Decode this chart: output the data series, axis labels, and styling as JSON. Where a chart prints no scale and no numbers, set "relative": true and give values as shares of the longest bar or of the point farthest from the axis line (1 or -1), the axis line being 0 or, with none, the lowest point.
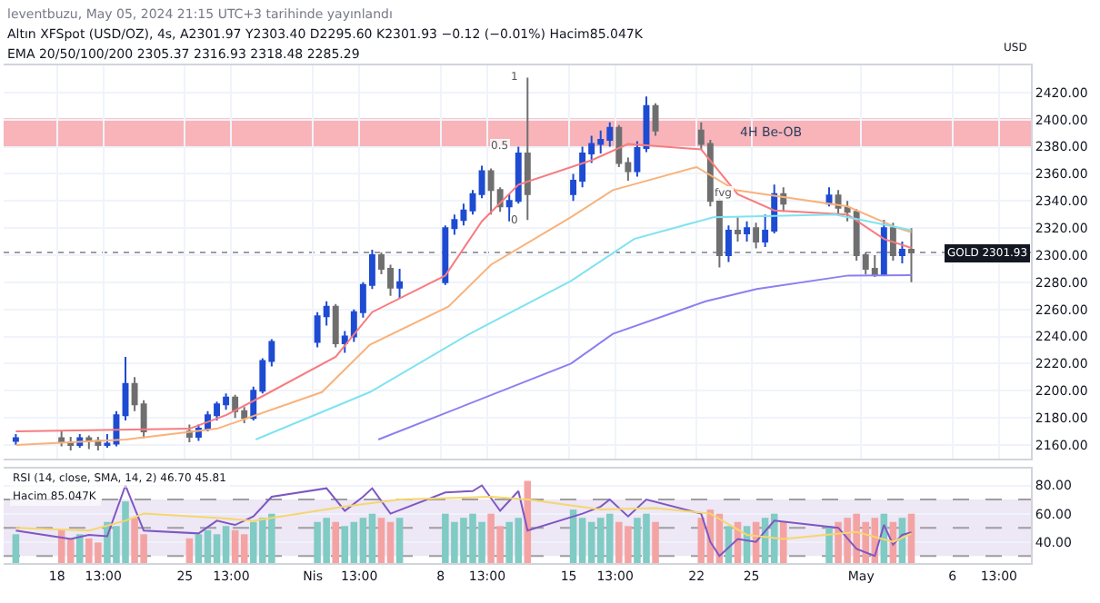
{
  "chart_data": [
    {
      "type": "candlestick",
      "title": "Altın XFSpot (USD/OZ), 4s, A2301.97 Y2303.40 D2295.60 K2301.93 −0.12 (−0.01%) Hacim85.047K",
      "subtitle": "EMA 20/50/100/200 2305.37 2316.93 2318.48 2285.29",
      "x": [
        "2024-03-15T18:00",
        "2024-03-18T06:00",
        "2024-03-18T18:00",
        "2024-03-19T06:00",
        "2024-03-19T18:00",
        "2024-03-20T06:00",
        "2024-03-20T18:00",
        "2024-03-21T06:00",
        "2024-03-21T18:00",
        "2024-03-22T06:00",
        "2024-03-22T18:00",
        "2024-03-25T06:00",
        "2024-03-25T18:00",
        "2024-03-26T06:00",
        "2024-03-26T18:00",
        "2024-03-27T06:00",
        "2024-03-27T18:00",
        "2024-03-28T06:00",
        "2024-03-28T18:00",
        "2024-03-29T06:00",
        "2024-03-29T18:00",
        "2024-04-01T06:00",
        "2024-04-01T18:00",
        "2024-04-02T06:00",
        "2024-04-02T18:00",
        "2024-04-03T06:00",
        "2024-04-03T18:00",
        "2024-04-04T06:00",
        "2024-04-04T18:00",
        "2024-04-05T06:00",
        "2024-04-05T18:00",
        "2024-04-08T06:00",
        "2024-04-08T18:00",
        "2024-04-09T06:00",
        "2024-04-09T18:00",
        "2024-04-10T06:00",
        "2024-04-10T18:00",
        "2024-04-11T06:00",
        "2024-04-11T18:00",
        "2024-04-12T06:00",
        "2024-04-12T18:00",
        "2024-04-15T06:00",
        "2024-04-15T18:00",
        "2024-04-16T06:00",
        "2024-04-16T18:00",
        "2024-04-17T06:00",
        "2024-04-17T18:00",
        "2024-04-18T06:00",
        "2024-04-18T18:00",
        "2024-04-19T06:00",
        "2024-04-19T18:00",
        "2024-04-22T06:00",
        "2024-04-22T18:00",
        "2024-04-23T06:00",
        "2024-04-23T18:00",
        "2024-04-24T06:00",
        "2024-04-24T18:00",
        "2024-04-25T06:00",
        "2024-04-25T18:00",
        "2024-04-26T06:00",
        "2024-04-26T18:00",
        "2024-04-29T06:00",
        "2024-04-29T18:00",
        "2024-04-30T06:00",
        "2024-04-30T18:00",
        "2024-05-01T06:00",
        "2024-05-01T18:00",
        "2024-05-02T06:00",
        "2024-05-02T18:00",
        "2024-05-03T06:00",
        "2024-05-03T18:00"
      ],
      "ohlc": [
        [
          2163,
          2168,
          2160,
          2165
        ],
        [
          2165,
          2170,
          2159,
          2162
        ],
        [
          2162,
          2166,
          2156,
          2160
        ],
        [
          2160,
          2168,
          2158,
          2165
        ],
        [
          2165,
          2167,
          2157,
          2163
        ],
        [
          2163,
          2166,
          2156,
          2160
        ],
        [
          2160,
          2168,
          2158,
          2161
        ],
        [
          2161,
          2185,
          2159,
          2182
        ],
        [
          2182,
          2225,
          2178,
          2205
        ],
        [
          2205,
          2210,
          2185,
          2190
        ],
        [
          2190,
          2193,
          2165,
          2170
        ],
        [
          2170,
          2175,
          2162,
          2166
        ],
        [
          2166,
          2175,
          2163,
          2172
        ],
        [
          2172,
          2185,
          2170,
          2182
        ],
        [
          2182,
          2192,
          2178,
          2190
        ],
        [
          2190,
          2198,
          2186,
          2195
        ],
        [
          2195,
          2197,
          2180,
          2185
        ],
        [
          2185,
          2188,
          2176,
          2180
        ],
        [
          2180,
          2203,
          2178,
          2200
        ],
        [
          2200,
          2224,
          2198,
          2222
        ],
        [
          2222,
          2238,
          2218,
          2236
        ],
        [
          2236,
          2258,
          2232,
          2255
        ],
        [
          2255,
          2266,
          2248,
          2262
        ],
        [
          2262,
          2264,
          2232,
          2235
        ],
        [
          2235,
          2244,
          2228,
          2240
        ],
        [
          2240,
          2260,
          2236,
          2258
        ],
        [
          2258,
          2280,
          2254,
          2278
        ],
        [
          2278,
          2304,
          2275,
          2300
        ],
        [
          2300,
          2302,
          2286,
          2290
        ],
        [
          2290,
          2293,
          2270,
          2276
        ],
        [
          2276,
          2290,
          2268,
          2280
        ],
        [
          2280,
          2322,
          2278,
          2320
        ],
        [
          2320,
          2330,
          2315,
          2326
        ],
        [
          2326,
          2338,
          2322,
          2333
        ],
        [
          2333,
          2348,
          2330,
          2345
        ],
        [
          2345,
          2366,
          2342,
          2362
        ],
        [
          2362,
          2364,
          2330,
          2348
        ],
        [
          2348,
          2350,
          2332,
          2336
        ],
        [
          2336,
          2345,
          2325,
          2340
        ],
        [
          2340,
          2380,
          2338,
          2375
        ],
        [
          2375,
          2431,
          2326,
          2345
        ],
        [
          2345,
          2360,
          2340,
          2355
        ],
        [
          2355,
          2380,
          2350,
          2375
        ],
        [
          2375,
          2388,
          2368,
          2382
        ],
        [
          2382,
          2392,
          2375,
          2385
        ],
        [
          2385,
          2398,
          2380,
          2394
        ],
        [
          2394,
          2396,
          2365,
          2368
        ],
        [
          2368,
          2372,
          2355,
          2362
        ],
        [
          2362,
          2384,
          2358,
          2379
        ],
        [
          2379,
          2417,
          2376,
          2410
        ],
        [
          2410,
          2412,
          2388,
          2392
        ],
        [
          2392,
          2398,
          2378,
          2382
        ],
        [
          2382,
          2385,
          2336,
          2340
        ],
        [
          2340,
          2342,
          2291,
          2300
        ],
        [
          2300,
          2322,
          2295,
          2318
        ],
        [
          2318,
          2328,
          2310,
          2316
        ],
        [
          2316,
          2325,
          2310,
          2320
        ],
        [
          2320,
          2324,
          2305,
          2310
        ],
        [
          2310,
          2330,
          2306,
          2318
        ],
        [
          2318,
          2352,
          2316,
          2345
        ],
        [
          2345,
          2350,
          2332,
          2338
        ],
        [
          2338,
          2350,
          2336,
          2344
        ],
        [
          2344,
          2348,
          2330,
          2335
        ],
        [
          2335,
          2340,
          2325,
          2332
        ],
        [
          2332,
          2334,
          2296,
          2300
        ],
        [
          2300,
          2302,
          2286,
          2290
        ],
        [
          2290,
          2300,
          2284,
          2286
        ],
        [
          2286,
          2326,
          2285,
          2320
        ],
        [
          2320,
          2324,
          2296,
          2300
        ],
        [
          2300,
          2310,
          2294,
          2304
        ],
        [
          2304,
          2320,
          2280,
          2301.93
        ]
      ],
      "colors": [
        "#1e4bd2",
        "#6f6f6f",
        "#6f6f6f",
        "#1e4bd2",
        "#6f6f6f",
        "#6f6f6f",
        "#1e4bd2",
        "#1e4bd2",
        "#1e4bd2",
        "#6f6f6f",
        "#6f6f6f",
        "#6f6f6f",
        "#1e4bd2",
        "#1e4bd2",
        "#1e4bd2",
        "#1e4bd2",
        "#6f6f6f",
        "#6f6f6f",
        "#1e4bd2",
        "#1e4bd2",
        "#1e4bd2",
        "#1e4bd2",
        "#1e4bd2",
        "#6f6f6f",
        "#1e4bd2",
        "#1e4bd2",
        "#1e4bd2",
        "#1e4bd2",
        "#6f6f6f",
        "#6f6f6f",
        "#1e4bd2",
        "#1e4bd2",
        "#1e4bd2",
        "#1e4bd2",
        "#1e4bd2",
        "#1e4bd2",
        "#6f6f6f",
        "#6f6f6f",
        "#1e4bd2",
        "#1e4bd2",
        "#6f6f6f",
        "#1e4bd2",
        "#1e4bd2",
        "#1e4bd2",
        "#1e4bd2",
        "#1e4bd2",
        "#6f6f6f",
        "#6f6f6f",
        "#1e4bd2",
        "#1e4bd2",
        "#6f6f6f",
        "#6f6f6f",
        "#6f6f6f",
        "#6f6f6f",
        "#1e4bd2",
        "#6f6f6f",
        "#1e4bd2",
        "#6f6f6f",
        "#1e4bd2",
        "#1e4bd2",
        "#6f6f6f",
        "#1e4bd2",
        "#6f6f6f",
        "#6f6f6f",
        "#6f6f6f",
        "#6f6f6f",
        "#6f6f6f",
        "#1e4bd2",
        "#6f6f6f",
        "#1e4bd2",
        "#6f6f6f"
      ],
      "series": [
        {
          "type": "line",
          "color": "#f77c80",
          "x": [
            "2024-03-15T18:00",
            "2024-03-25T06:00",
            "2024-03-27T06:00",
            "2024-03-29T06:00",
            "2024-04-02T06:00",
            "2024-04-04T06:00",
            "2024-04-08T06:00",
            "2024-04-10T06:00",
            "2024-04-12T06:00",
            "2024-04-16T06:00",
            "2024-04-18T06:00",
            "2024-04-22T06:00",
            "2024-04-24T06:00",
            "2024-04-26T06:00",
            "2024-04-30T06:00",
            "2024-05-02T06:00",
            "2024-05-03T18:00"
          ],
          "values": [
            2170,
            2172,
            2182,
            2196,
            2225,
            2258,
            2285,
            2325,
            2352,
            2370,
            2382,
            2378,
            2345,
            2333,
            2330,
            2312,
            2305.37
          ]
        },
        {
          "type": "line",
          "color": "#f9b27a",
          "x": [
            "2024-03-15T18:00",
            "2024-03-21T18:00",
            "2024-03-26T18:00",
            "2024-04-01T12:00",
            "2024-04-04T03:00",
            "2024-04-08T10:00",
            "2024-04-10T18:00",
            "2024-04-15T03:00",
            "2024-04-17T10:00",
            "2024-04-22T00:00",
            "2024-04-24T03:00",
            "2024-04-30T06:00",
            "2024-05-03T00:00",
            "2024-05-03T18:00"
          ],
          "values": [
            2160,
            2164,
            2172,
            2199,
            2234,
            2262,
            2293,
            2328,
            2348,
            2365,
            2348,
            2336,
            2320,
            2316.93
          ]
        },
        {
          "type": "line",
          "color": "#7fe3f0",
          "x": [
            "2024-03-28T21:00",
            "2024-04-04T03:00",
            "2024-04-09T14:00",
            "2024-04-15T03:00",
            "2024-04-18T14:00",
            "2024-04-22T22:00",
            "2024-04-29T14:00",
            "2024-05-03T18:00"
          ],
          "values": [
            2164,
            2199,
            2242,
            2281,
            2312,
            2328,
            2330,
            2318.48
          ]
        },
        {
          "type": "line",
          "color": "#8c7ff0",
          "x": [
            "2024-04-04T14:00",
            "2024-04-15T03:00",
            "2024-04-17T10:00",
            "2024-04-22T12:00",
            "2024-04-25T07:00",
            "2024-04-30T07:00",
            "2024-05-03T18:00"
          ],
          "values": [
            2164,
            2220,
            2242,
            2266,
            2275,
            2285,
            2285.29
          ]
        }
      ],
      "xlim": [
        "2024-03-15T02:00",
        "2024-05-10T07:00"
      ],
      "xticks": [
        {
          "value": "2024-03-18",
          "label": null
        },
        {
          "value": "2024-03-20T13:00",
          "label": null
        },
        {
          "value": "2024-03-25",
          "label": null
        },
        {
          "value": "2024-03-27T13:00",
          "label": null
        },
        {
          "value": "2024-04-01",
          "label": null
        },
        {
          "value": "2024-04-03T13:00",
          "label": null
        },
        {
          "value": "2024-04-08",
          "label": null
        },
        {
          "value": "2024-04-10T13:00",
          "label": null
        },
        {
          "value": "2024-04-15",
          "label": null
        },
        {
          "value": "2024-04-17T13:00",
          "label": null
        },
        {
          "value": "2024-04-22",
          "label": null
        },
        {
          "value": "2024-04-25",
          "label": null
        },
        {
          "value": "2024-05-01",
          "label": null
        },
        {
          "value": "2024-05-06",
          "label": null
        },
        {
          "value": "2024-05-08T13:00",
          "label": null
        }
      ],
      "ylim": [
        2150,
        2440
      ],
      "yticks": [
        {
          "value": 2160,
          "label": "2160.00"
        },
        {
          "value": 2180,
          "label": "2180.00"
        },
        {
          "value": 2200,
          "label": "2200.00"
        },
        {
          "value": 2220,
          "label": "2220.00"
        },
        {
          "value": 2240,
          "label": "2240.00"
        },
        {
          "value": 2260,
          "label": "2260.00"
        },
        {
          "value": 2280,
          "label": "2280.00"
        },
        {
          "value": 2300,
          "label": "2300.00"
        },
        {
          "value": 2320,
          "label": "2320.00"
        },
        {
          "value": 2340,
          "label": "2340.00"
        },
        {
          "value": 2360,
          "label": "2360.00"
        },
        {
          "value": 2380,
          "label": "2380.00"
        },
        {
          "value": 2400,
          "label": "2400.00"
        },
        {
          "value": 2420,
          "label": "2420.00"
        }
      ],
      "ylabel": "USD",
      "tick_labels": "y",
      "grid": true,
      "ref_lines": [
        {
          "axis": "y",
          "value": 2301.93,
          "label": "GOLD 2301.93",
          "color": "#9e9e9e",
          "line_style": "dotted"
        }
      ],
      "bands": [
        {
          "axis": "y",
          "from": 2380,
          "to": 2401,
          "label": "4H Be-OB",
          "color": "#f8b4b9"
        }
      ],
      "annotations": [
        "leventbuzu, May 05, 2024 21:15 UTC+3 tarihinde yayınlandı",
        {
          "text": "1",
          "x": "2024-04-12T18:00",
          "y": 2431
        },
        {
          "text": "0.5",
          "x": "2024-04-12T06:00",
          "y": 2380
        },
        {
          "text": "0",
          "x": "2024-04-12T18:00",
          "y": 2326
        },
        {
          "text": "fvg",
          "x": "2024-04-24T12:00",
          "y": 2346
        }
      ]
    },
    {
      "type": "bar",
      "relative": true,
      "title": "Hacim 85.047K",
      "tick_labels": false,
      "x": [
        "2024-03-15T18:00",
        "2024-03-18T06:00",
        "2024-03-18T18:00",
        "2024-03-19T06:00",
        "2024-03-19T18:00",
        "2024-03-20T06:00",
        "2024-03-20T18:00",
        "2024-03-21T06:00",
        "2024-03-21T18:00",
        "2024-03-22T06:00",
        "2024-03-22T18:00",
        "2024-03-25T06:00",
        "2024-03-25T18:00",
        "2024-03-26T06:00",
        "2024-03-26T18:00",
        "2024-03-27T06:00",
        "2024-03-27T18:00",
        "2024-03-28T06:00",
        "2024-03-28T18:00",
        "2024-03-29T06:00",
        "2024-03-29T18:00",
        "2024-04-01T06:00",
        "2024-04-01T18:00",
        "2024-04-02T06:00",
        "2024-04-02T18:00",
        "2024-04-03T06:00",
        "2024-04-03T18:00",
        "2024-04-04T06:00",
        "2024-04-04T18:00",
        "2024-04-05T06:00",
        "2024-04-05T18:00",
        "2024-04-08T06:00",
        "2024-04-08T18:00",
        "2024-04-09T06:00",
        "2024-04-09T18:00",
        "2024-04-10T06:00",
        "2024-04-10T18:00",
        "2024-04-11T06:00",
        "2024-04-11T18:00",
        "2024-04-12T06:00",
        "2024-04-12T18:00",
        "2024-04-15T06:00",
        "2024-04-15T18:00",
        "2024-04-16T06:00",
        "2024-04-16T18:00",
        "2024-04-17T06:00",
        "2024-04-17T18:00",
        "2024-04-18T06:00",
        "2024-04-18T18:00",
        "2024-04-19T06:00",
        "2024-04-19T18:00",
        "2024-04-22T06:00",
        "2024-04-22T18:00",
        "2024-04-23T06:00",
        "2024-04-23T18:00",
        "2024-04-24T06:00",
        "2024-04-24T18:00",
        "2024-04-25T06:00",
        "2024-04-25T18:00",
        "2024-04-26T06:00",
        "2024-04-26T18:00",
        "2024-04-29T06:00",
        "2024-04-29T18:00",
        "2024-04-30T06:00",
        "2024-04-30T18:00",
        "2024-05-01T06:00",
        "2024-05-01T18:00",
        "2024-05-02T06:00",
        "2024-05-02T18:00",
        "2024-05-03T06:00",
        "2024-05-03T18:00"
      ],
      "values": [
        0.35,
        0.4,
        0.3,
        0.35,
        0.3,
        0.25,
        0.5,
        0.45,
        0.75,
        0.55,
        0.35,
        0.3,
        0.35,
        0.4,
        0.35,
        0.45,
        0.4,
        0.35,
        0.5,
        0.55,
        0.6,
        0.5,
        0.55,
        0.5,
        0.45,
        0.5,
        0.55,
        0.6,
        0.55,
        0.5,
        0.55,
        0.6,
        0.5,
        0.55,
        0.6,
        0.5,
        0.6,
        0.45,
        0.5,
        0.55,
        1.0,
        0.65,
        0.55,
        0.5,
        0.55,
        0.6,
        0.5,
        0.45,
        0.55,
        0.6,
        0.5,
        0.55,
        0.65,
        0.6,
        0.45,
        0.5,
        0.45,
        0.5,
        0.55,
        0.6,
        0.5,
        0.45,
        0.5,
        0.55,
        0.6,
        0.5,
        0.55,
        0.6,
        0.5,
        0.55,
        0.6
      ],
      "colors": [
        "#80cbc4",
        "#f4a3a3",
        "#f4a3a3",
        "#80cbc4",
        "#f4a3a3",
        "#f4a3a3",
        "#80cbc4",
        "#80cbc4",
        "#80cbc4",
        "#f4a3a3",
        "#f4a3a3",
        "#f4a3a3",
        "#80cbc4",
        "#80cbc4",
        "#80cbc4",
        "#80cbc4",
        "#f4a3a3",
        "#f4a3a3",
        "#80cbc4",
        "#80cbc4",
        "#80cbc4",
        "#80cbc4",
        "#80cbc4",
        "#f4a3a3",
        "#80cbc4",
        "#80cbc4",
        "#80cbc4",
        "#80cbc4",
        "#f4a3a3",
        "#f4a3a3",
        "#80cbc4",
        "#80cbc4",
        "#80cbc4",
        "#80cbc4",
        "#80cbc4",
        "#80cbc4",
        "#f4a3a3",
        "#f4a3a3",
        "#80cbc4",
        "#80cbc4",
        "#f4a3a3",
        "#80cbc4",
        "#80cbc4",
        "#80cbc4",
        "#80cbc4",
        "#80cbc4",
        "#f4a3a3",
        "#f4a3a3",
        "#80cbc4",
        "#80cbc4",
        "#f4a3a3",
        "#f4a3a3",
        "#f4a3a3",
        "#f4a3a3",
        "#80cbc4",
        "#f4a3a3",
        "#80cbc4",
        "#f4a3a3",
        "#80cbc4",
        "#80cbc4",
        "#f4a3a3",
        "#80cbc4",
        "#f4a3a3",
        "#f4a3a3",
        "#f4a3a3",
        "#f4a3a3",
        "#f4a3a3",
        "#80cbc4",
        "#f4a3a3",
        "#80cbc4",
        "#f4a3a3"
      ],
      "xlim": [
        "2024-03-15T02:00",
        "2024-05-10T07:00"
      ]
    },
    {
      "type": "line",
      "title": "RSI (14, close, SMA, 14, 2) 46.70 45.81",
      "grid": true,
      "series": [
        {
          "color": "#7e57c2",
          "x": [
            "2024-03-15T18:00",
            "2024-03-18T18:00",
            "2024-03-19T18:00",
            "2024-03-20T18:00",
            "2024-03-21T18:00",
            "2024-03-22T18:00",
            "2024-03-25T18:00",
            "2024-03-26T18:00",
            "2024-03-27T18:00",
            "2024-03-28T18:00",
            "2024-03-29T18:00",
            "2024-04-01T18:00",
            "2024-04-02T18:00",
            "2024-04-03T18:00",
            "2024-04-04T06:00",
            "2024-04-05T06:00",
            "2024-04-08T06:00",
            "2024-04-09T18:00",
            "2024-04-10T06:00",
            "2024-04-11T06:00",
            "2024-04-12T06:00",
            "2024-04-12T18:00",
            "2024-04-15T18:00",
            "2024-04-16T18:00",
            "2024-04-17T06:00",
            "2024-04-18T06:00",
            "2024-04-19T06:00",
            "2024-04-22T06:00",
            "2024-04-22T18:00",
            "2024-04-23T06:00",
            "2024-04-24T06:00",
            "2024-04-25T06:00",
            "2024-04-26T06:00",
            "2024-04-29T18:00",
            "2024-04-30T18:00",
            "2024-05-01T18:00",
            "2024-05-02T06:00",
            "2024-05-02T18:00",
            "2024-05-03T06:00",
            "2024-05-03T18:00"
          ],
          "values": [
            48,
            42,
            45,
            44,
            80,
            48,
            46,
            55,
            52,
            58,
            72,
            78,
            62,
            72,
            78,
            60,
            75,
            76,
            80,
            62,
            76,
            48,
            60,
            65,
            70,
            58,
            70,
            60,
            40,
            30,
            42,
            40,
            55,
            50,
            35,
            30,
            52,
            38,
            45,
            46.7
          ]
        },
        {
          "color": "#f5d76e",
          "x": [
            "2024-03-15T18:00",
            "2024-03-19T18:00",
            "2024-03-21T18:00",
            "2024-03-22T18:00",
            "2024-03-26T18:00",
            "2024-03-28T18:00",
            "2024-04-02T18:00",
            "2024-04-05T18:00",
            "2024-04-10T18:00",
            "2024-04-12T18:00",
            "2024-04-16T18:00",
            "2024-04-19T18:00",
            "2024-04-22T18:00",
            "2024-04-24T18:00",
            "2024-04-26T18:00",
            "2024-04-30T18:00",
            "2024-05-02T18:00",
            "2024-05-03T18:00"
          ],
          "values": [
            50,
            48,
            55,
            60,
            57,
            55,
            65,
            70,
            72,
            70,
            63,
            64,
            60,
            45,
            42,
            47,
            40,
            45.81
          ]
        }
      ],
      "xlim": [
        "2024-03-15T02:00",
        "2024-05-10T07:00"
      ],
      "xticks": [
        {
          "value": "2024-03-18",
          "label": "18"
        },
        {
          "value": "2024-03-20T13:00",
          "label": "13:00"
        },
        {
          "value": "2024-03-25",
          "label": "25"
        },
        {
          "value": "2024-03-27T13:00",
          "label": "13:00"
        },
        {
          "value": "2024-04-01",
          "label": "Nis"
        },
        {
          "value": "2024-04-03T13:00",
          "label": "13:00"
        },
        {
          "value": "2024-04-08",
          "label": "8"
        },
        {
          "value": "2024-04-10T13:00",
          "label": "13:00"
        },
        {
          "value": "2024-04-15",
          "label": "15"
        },
        {
          "value": "2024-04-17T13:00",
          "label": "13:00"
        },
        {
          "value": "2024-04-22",
          "label": "22"
        },
        {
          "value": "2024-04-25",
          "label": "25"
        },
        {
          "value": "2024-05-01",
          "label": "May"
        },
        {
          "value": "2024-05-06",
          "label": "6"
        },
        {
          "value": "2024-05-08T13:00",
          "label": "13:00"
        }
      ],
      "ylim": [
        25,
        92
      ],
      "yticks": [
        {
          "value": 40,
          "label": "40.00"
        },
        {
          "value": 60,
          "label": "60.00"
        },
        {
          "value": 80,
          "label": "80.00"
        }
      ],
      "ref_lines": [
        {
          "axis": "y",
          "value": 70,
          "color": "#9e9e9e",
          "line_style": "dashed"
        },
        {
          "axis": "y",
          "value": 50,
          "color": "#9e9e9e",
          "line_style": "dashed"
        },
        {
          "axis": "y",
          "value": 30,
          "color": "#9e9e9e",
          "line_style": "dashed"
        }
      ],
      "bands": [
        {
          "axis": "y",
          "from": 30,
          "to": 70,
          "color": "#ede7f6"
        }
      ]
    }
  ]
}
